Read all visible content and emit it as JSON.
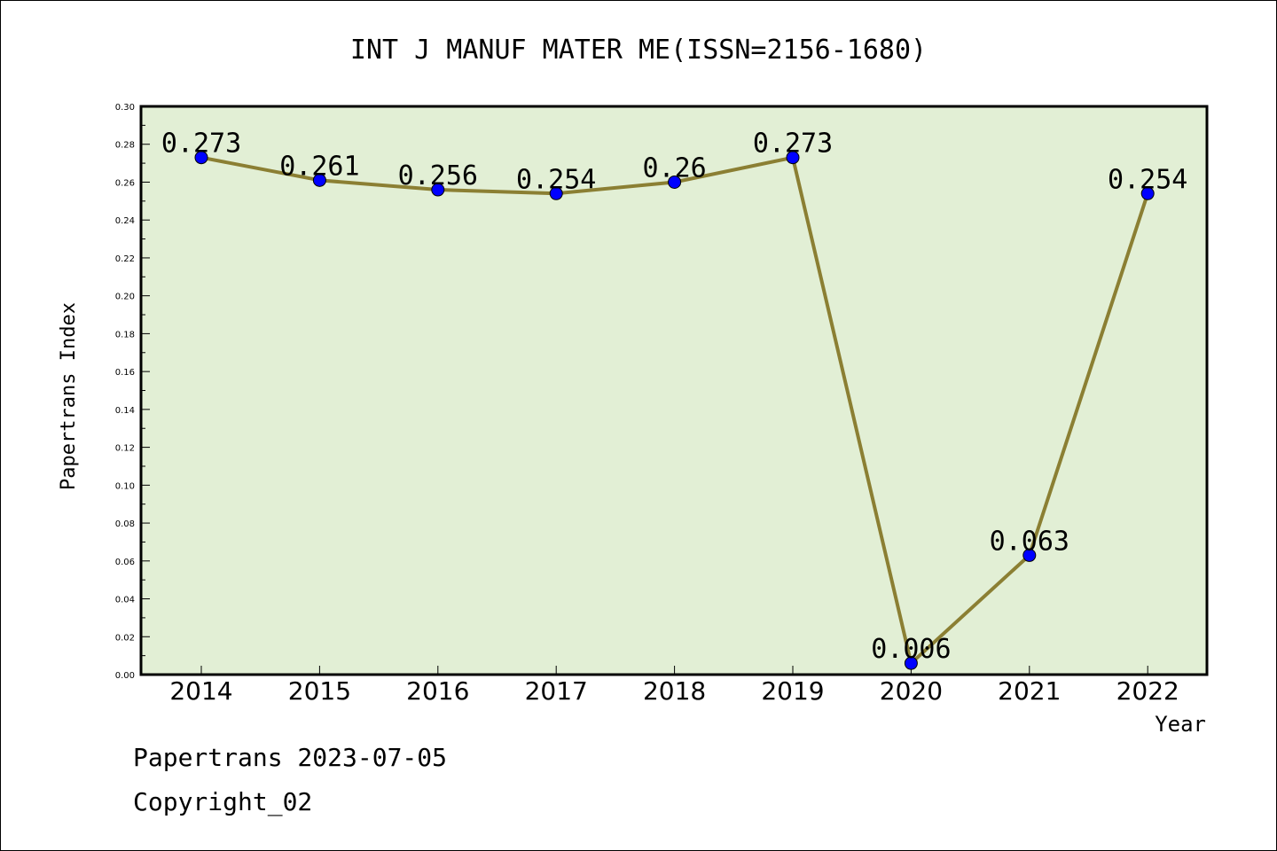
{
  "chart_data": {
    "type": "line",
    "title": "INT J MANUF MATER ME(ISSN=2156-1680)",
    "xlabel": "Year",
    "ylabel": "Papertrans Index",
    "categories": [
      "2014",
      "2015",
      "2016",
      "2017",
      "2018",
      "2019",
      "2020",
      "2021",
      "2022"
    ],
    "series": [
      {
        "values": [
          0.273,
          0.261,
          0.256,
          0.254,
          0.26,
          0.273,
          0.006,
          0.063,
          0.254
        ],
        "labels": [
          "0.273",
          "0.261",
          "0.256",
          "0.254",
          "0.26",
          "0.273",
          "0.006",
          "0.063",
          "0.254"
        ]
      }
    ],
    "ylim": [
      0,
      0.3
    ],
    "yticks": [
      "0.00",
      "0.02",
      "0.04",
      "0.06",
      "0.08",
      "0.10",
      "0.12",
      "0.14",
      "0.16",
      "0.18",
      "0.20",
      "0.22",
      "0.24",
      "0.26",
      "0.28",
      "0.30"
    ],
    "grid": false,
    "legend": "none",
    "colors": {
      "plot_background": "#e2efd5",
      "line": "#8b7f33",
      "marker": "#0000ff"
    }
  },
  "footer": {
    "line1": "Papertrans 2023-07-05",
    "line2": "Copyright_02"
  }
}
